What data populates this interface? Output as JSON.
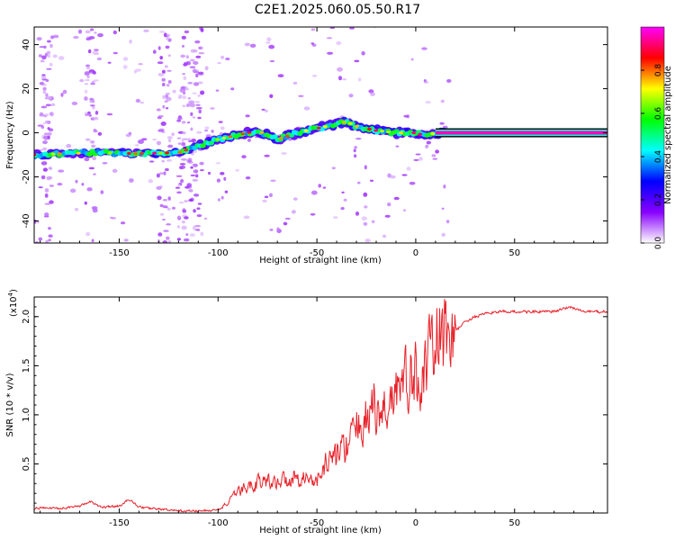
{
  "title": "C2E1.2025.060.05.50.R17",
  "chart_data": [
    {
      "type": "heatmap",
      "xlabel": "Height of straight line (km)",
      "ylabel": "Frequency (Hz)",
      "xlim": [
        -193,
        97
      ],
      "ylim": [
        -50,
        48
      ],
      "x_ticks": [
        -150,
        -100,
        -50,
        0,
        50
      ],
      "x_tick_labels": [
        "-150",
        "-100",
        "-50",
        "0",
        "50"
      ],
      "y_ticks": [
        -40,
        -20,
        0,
        20,
        40
      ],
      "y_tick_labels": [
        "-40",
        "-20",
        "0",
        "20",
        "40"
      ],
      "ridge": {
        "x": [
          -193,
          -180,
          -160,
          -140,
          -120,
          -110,
          -100,
          -90,
          -80,
          -70,
          -60,
          -50,
          -40,
          -35,
          -30,
          -20,
          -10,
          0,
          5,
          10,
          20,
          50,
          97
        ],
        "y": [
          -10,
          -9.5,
          -9,
          -9.5,
          -9,
          -6,
          -3,
          -1,
          1,
          -3,
          0,
          2,
          4,
          5,
          3,
          1,
          0,
          0,
          -1.5,
          0,
          0,
          0,
          0
        ]
      },
      "colorbar": {
        "label": "Normalized spectral amplitude",
        "range": [
          0,
          1
        ],
        "ticks": [
          0.0,
          0.2,
          0.4,
          0.6,
          0.8
        ],
        "tick_labels": [
          "0.0",
          "0.2",
          "0.4",
          "0.6",
          "0.8"
        ],
        "colors": [
          "#ffffff",
          "#8800ff",
          "#0000ff",
          "#00ffff",
          "#00ff00",
          "#ffff00",
          "#ff0000",
          "#ff00ff"
        ]
      }
    },
    {
      "type": "line",
      "xlabel": "Height of straight line (km)",
      "ylabel": "SNR (10 * v/v)",
      "scale_label": "(x10",
      "scale_exp": "4",
      "scale_close": ")",
      "xlim": [
        -193,
        97
      ],
      "ylim": [
        0,
        2.2
      ],
      "x_ticks": [
        -150,
        -100,
        -50,
        0,
        50
      ],
      "x_tick_labels": [
        "-150",
        "-100",
        "-50",
        "0",
        "50"
      ],
      "y_ticks": [
        0.5,
        1.0,
        1.5,
        2.0
      ],
      "y_tick_labels": [
        "0.5",
        "1.0",
        "1.5",
        "2.0"
      ],
      "color": "#e8222a",
      "series": [
        {
          "x": [
            -193,
            -180,
            -170,
            -165,
            -160,
            -150,
            -145,
            -140,
            -130,
            -120,
            -110,
            -100,
            -95,
            -90,
            -85,
            -80,
            -70,
            -60,
            -50,
            -45,
            -40,
            -35,
            -30,
            -25,
            -22,
            -20,
            -15,
            -10,
            -5,
            0,
            5,
            10,
            15,
            20,
            25,
            30,
            40,
            50,
            60,
            70,
            78,
            85,
            97
          ],
          "y": [
            0.05,
            0.05,
            0.07,
            0.12,
            0.06,
            0.07,
            0.14,
            0.06,
            0.04,
            0.02,
            0.02,
            0.03,
            0.1,
            0.2,
            0.25,
            0.3,
            0.3,
            0.35,
            0.3,
            0.5,
            0.55,
            0.65,
            0.8,
            0.9,
            1.1,
            0.9,
            1.0,
            1.2,
            1.25,
            1.3,
            1.35,
            1.65,
            1.7,
            1.85,
            1.95,
            2.0,
            2.05,
            2.05,
            2.05,
            2.05,
            2.1,
            2.05,
            2.05
          ]
        }
      ]
    }
  ]
}
